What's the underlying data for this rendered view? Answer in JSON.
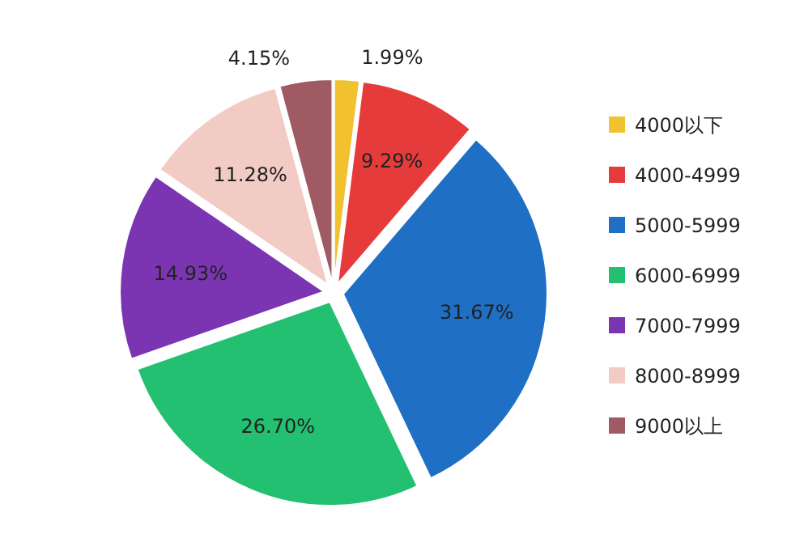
{
  "chart_data": {
    "type": "pie",
    "categories": [
      "4000以下",
      "4000-4999",
      "5000-5999",
      "6000-6999",
      "7000-7999",
      "8000-8999",
      "9000以上"
    ],
    "values": [
      1.99,
      9.29,
      31.67,
      26.7,
      14.93,
      11.28,
      4.15
    ],
    "colors": [
      "#f2c12e",
      "#e63b3b",
      "#1f6fc4",
      "#22c070",
      "#7b35b3",
      "#f2cbc4",
      "#a05a63"
    ],
    "value_labels": [
      "1.99%",
      "9.29%",
      "31.67%",
      "26.70%",
      "14.93%",
      "11.28%",
      "4.15%"
    ],
    "legend": "right"
  }
}
